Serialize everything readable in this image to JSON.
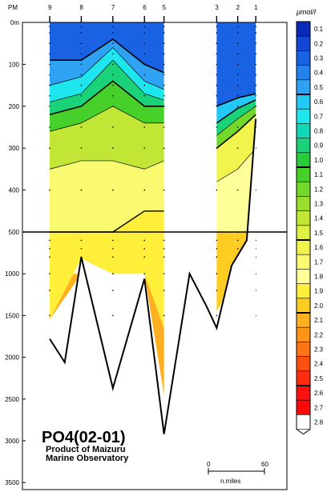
{
  "chart_data": {
    "type": "heatmap",
    "title": "PO4(02-01)",
    "subtitle": [
      "Product of Maizuru",
      "Marine Observatory"
    ],
    "top_axis_label": "PM",
    "stations": [
      "9",
      "8",
      "7",
      "6",
      "5",
      "3",
      "2",
      "1"
    ],
    "station_distance_nmiles": [
      0,
      21,
      42,
      63,
      76,
      111,
      125,
      137
    ],
    "depth_upper_ticks": [
      "0m",
      "100",
      "200",
      "300",
      "400",
      "500"
    ],
    "depth_upper_values": [
      0,
      100,
      200,
      300,
      400,
      500
    ],
    "depth_lower_ticks": [
      "1000",
      "1500",
      "2000",
      "2500",
      "3000",
      "3500"
    ],
    "depth_lower_values": [
      1000,
      1500,
      2000,
      2500,
      3000,
      3500
    ],
    "bottom_profile": [
      {
        "x": 0,
        "depth": 1780
      },
      {
        "x": 10,
        "depth": 2060
      },
      {
        "x": 21,
        "depth": 800
      },
      {
        "x": 42,
        "depth": 2370
      },
      {
        "x": 63,
        "depth": 1060
      },
      {
        "x": 76,
        "depth": 2920
      },
      {
        "x": 93,
        "depth": 1000
      },
      {
        "x": 104,
        "depth": 1380
      },
      {
        "x": 111,
        "depth": 1650
      },
      {
        "x": 121,
        "depth": 900
      },
      {
        "x": 131,
        "depth": 600
      },
      {
        "x": 137,
        "depth": 230
      }
    ],
    "colorbar": {
      "unit": "μmol/l",
      "ticks": [
        "0.1",
        "0.2",
        "0.3",
        "0.4",
        "0.5",
        "0.6",
        "0.7",
        "0.8",
        "0.9",
        "1.0",
        "1.1",
        "1.2",
        "1.3",
        "1.4",
        "1.5",
        "1.6",
        "1.7",
        "1.8",
        "1.9",
        "2.0",
        "2.1",
        "2.2",
        "2.3",
        "2.4",
        "2.5",
        "2.6",
        "2.7",
        "2.8"
      ],
      "colors": [
        "#0a2ab8",
        "#1146d6",
        "#1a62e4",
        "#2383ee",
        "#2fa2f4",
        "#24c8f6",
        "#1de6ec",
        "#10d8b4",
        "#1ad278",
        "#28cc3a",
        "#48d02a",
        "#74d82a",
        "#9cde2e",
        "#c2e636",
        "#def042",
        "#f2f44e",
        "#fafa70",
        "#ffff9a",
        "#ffee3a",
        "#ffcc22",
        "#ffb020",
        "#ff9418",
        "#ff7414",
        "#ff5012",
        "#ff2c10",
        "#ff1010",
        "#ff0808",
        "#ffffff"
      ]
    },
    "scale_bar": {
      "min_label": "0",
      "max_label": "60",
      "unit_label": "n.miles"
    }
  }
}
